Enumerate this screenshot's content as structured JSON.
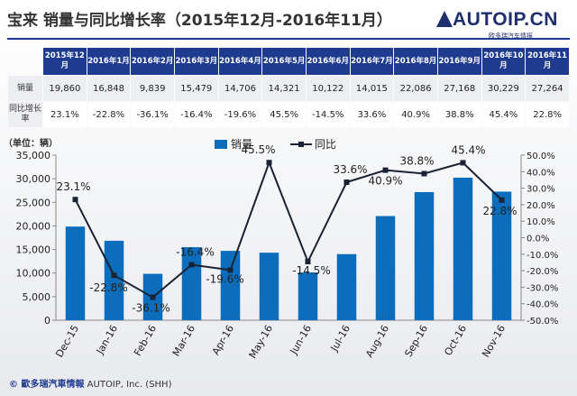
{
  "header": {
    "title": "宝来 销量与同比增长率（2015年12月-2016年11月）",
    "logo_text": "AUTOIP.CN",
    "logo_subtitle": "欧多瑞汽车情报"
  },
  "table": {
    "columns": [
      "2015年12月",
      "2016年1月",
      "2016年2月",
      "2016年3月",
      "2016年4月",
      "2016年5月",
      "2016年6月",
      "2016年7月",
      "2016年8月",
      "2016年9月",
      "2016年10月",
      "2016年11月"
    ],
    "rows": [
      {
        "label": "销量",
        "values": [
          "19,860",
          "16,848",
          "9,839",
          "15,479",
          "14,706",
          "14,321",
          "10,122",
          "14,015",
          "22,086",
          "27,168",
          "30,229",
          "27,264"
        ]
      },
      {
        "label": "同比增长率",
        "values": [
          "23.1%",
          "-22.8%",
          "-36.1%",
          "-16.4%",
          "-19.6%",
          "45.5%",
          "-14.5%",
          "33.6%",
          "40.9%",
          "38.8%",
          "45.4%",
          "22.8%"
        ]
      }
    ]
  },
  "colors": {
    "bar": "#0b6dbb",
    "line": "#1a2233",
    "header": "#1f3b8f"
  },
  "chart_data": {
    "type": "bar",
    "categories": [
      "Dec-15",
      "Jan-16",
      "Feb-16",
      "Mar-16",
      "Apr-16",
      "May-16",
      "Jun-16",
      "Jul-16",
      "Aug-16",
      "Sep-16",
      "Oct-16",
      "Nov-16"
    ],
    "series": [
      {
        "name": "销量",
        "type": "bar",
        "axis": "left",
        "values": [
          19860,
          16848,
          9839,
          15479,
          14706,
          14321,
          10122,
          14015,
          22086,
          27168,
          30229,
          27264
        ]
      },
      {
        "name": "同比",
        "type": "line",
        "axis": "right",
        "values": [
          23.1,
          -22.8,
          -36.1,
          -16.4,
          -19.6,
          45.5,
          -14.5,
          33.6,
          40.9,
          38.8,
          45.4,
          22.8
        ]
      }
    ],
    "point_labels": [
      "23.1%",
      "-22.8%",
      "-36.1%",
      "-16.4%",
      "-19.6%",
      "45.5%",
      "-14.5%",
      "33.6%",
      "40.9%",
      "38.8%",
      "45.4%",
      "22.8%"
    ],
    "ylabel": "（单位：辆）",
    "ylim": [
      0,
      35000
    ],
    "yticks": [
      0,
      5000,
      10000,
      15000,
      20000,
      25000,
      30000,
      35000
    ],
    "ytick_labels": [
      "0",
      "5,000",
      "10,000",
      "15,000",
      "20,000",
      "25,000",
      "30,000",
      "35,000"
    ],
    "y2lim": [
      -50,
      50
    ],
    "y2ticks": [
      -50,
      -40,
      -30,
      -20,
      -10,
      0,
      10,
      20,
      30,
      40,
      50
    ],
    "y2tick_labels": [
      "-50.0%",
      "-40.0%",
      "-30.0%",
      "-20.0%",
      "-10.0%",
      "0.0%",
      "10.0%",
      "20.0%",
      "30.0%",
      "40.0%",
      "50.0%"
    ],
    "legend_position": "top-center",
    "grid": false
  },
  "footer": {
    "copyright": "© 歐多瑞汽車情報",
    "company": "AUTOIP, Inc. (SHH)"
  }
}
